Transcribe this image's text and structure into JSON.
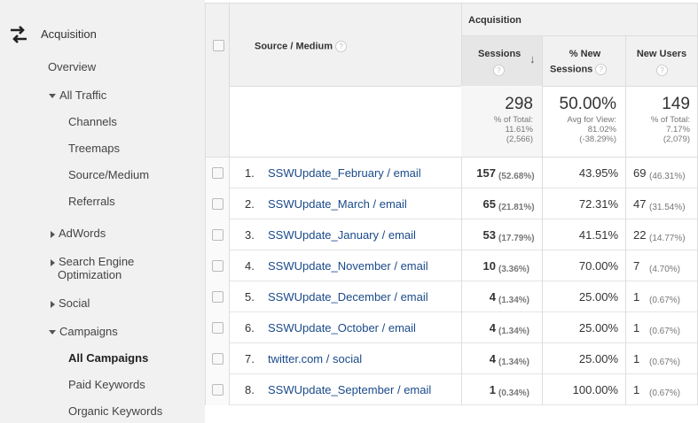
{
  "sidebar": {
    "section": "Acquisition",
    "overview": "Overview",
    "all_traffic": "All Traffic",
    "channels": "Channels",
    "treemaps": "Treemaps",
    "source_medium": "Source/Medium",
    "referrals": "Referrals",
    "adwords": "AdWords",
    "seo_line1": "Search Engine",
    "seo_line2": "Optimization",
    "social": "Social",
    "campaigns": "Campaigns",
    "all_campaigns": "All Campaigns",
    "paid_keywords": "Paid Keywords",
    "organic_keywords": "Organic Keywords"
  },
  "table": {
    "group_header": "Acquisition",
    "dimension_header": "Source / Medium",
    "col_sessions": "Sessions",
    "col_new_sessions_1": "% New",
    "col_new_sessions_2": "Sessions",
    "col_new_users": "New Users",
    "help_glyph": "?",
    "sort_arrow": "↓",
    "totals": {
      "sessions": "298",
      "sessions_l1": "% of Total:",
      "sessions_l2": "11.61%",
      "sessions_l3": "(2,566)",
      "new_sessions": "50.00%",
      "new_sessions_l1": "Avg for View:",
      "new_sessions_l2": "81.02%",
      "new_sessions_l3": "(-38.29%)",
      "new_users": "149",
      "new_users_l1": "% of Total:",
      "new_users_l2": "7.17%",
      "new_users_l3": "(2,079)"
    },
    "rows": [
      {
        "idx": "1.",
        "name": "SSWUpdate_February / email",
        "sessions": "157",
        "sessions_pct": "(52.68%)",
        "new_sessions": "43.95%",
        "new_users": "69",
        "new_users_pct": "(46.31%)"
      },
      {
        "idx": "2.",
        "name": "SSWUpdate_March / email",
        "sessions": "65",
        "sessions_pct": "(21.81%)",
        "new_sessions": "72.31%",
        "new_users": "47",
        "new_users_pct": "(31.54%)"
      },
      {
        "idx": "3.",
        "name": "SSWUpdate_January / email",
        "sessions": "53",
        "sessions_pct": "(17.79%)",
        "new_sessions": "41.51%",
        "new_users": "22",
        "new_users_pct": "(14.77%)"
      },
      {
        "idx": "4.",
        "name": "SSWUpdate_November / email",
        "sessions": "10",
        "sessions_pct": "(3.36%)",
        "new_sessions": "70.00%",
        "new_users": "7",
        "new_users_pct": "(4.70%)"
      },
      {
        "idx": "5.",
        "name": "SSWUpdate_December / email",
        "sessions": "4",
        "sessions_pct": "(1.34%)",
        "new_sessions": "25.00%",
        "new_users": "1",
        "new_users_pct": "(0.67%)"
      },
      {
        "idx": "6.",
        "name": "SSWUpdate_October / email",
        "sessions": "4",
        "sessions_pct": "(1.34%)",
        "new_sessions": "25.00%",
        "new_users": "1",
        "new_users_pct": "(0.67%)"
      },
      {
        "idx": "7.",
        "name": "twitter.com / social",
        "sessions": "4",
        "sessions_pct": "(1.34%)",
        "new_sessions": "25.00%",
        "new_users": "1",
        "new_users_pct": "(0.67%)"
      },
      {
        "idx": "8.",
        "name": "SSWUpdate_September / email",
        "sessions": "1",
        "sessions_pct": "(0.34%)",
        "new_sessions": "100.00%",
        "new_users": "1",
        "new_users_pct": "(0.67%)"
      }
    ]
  }
}
